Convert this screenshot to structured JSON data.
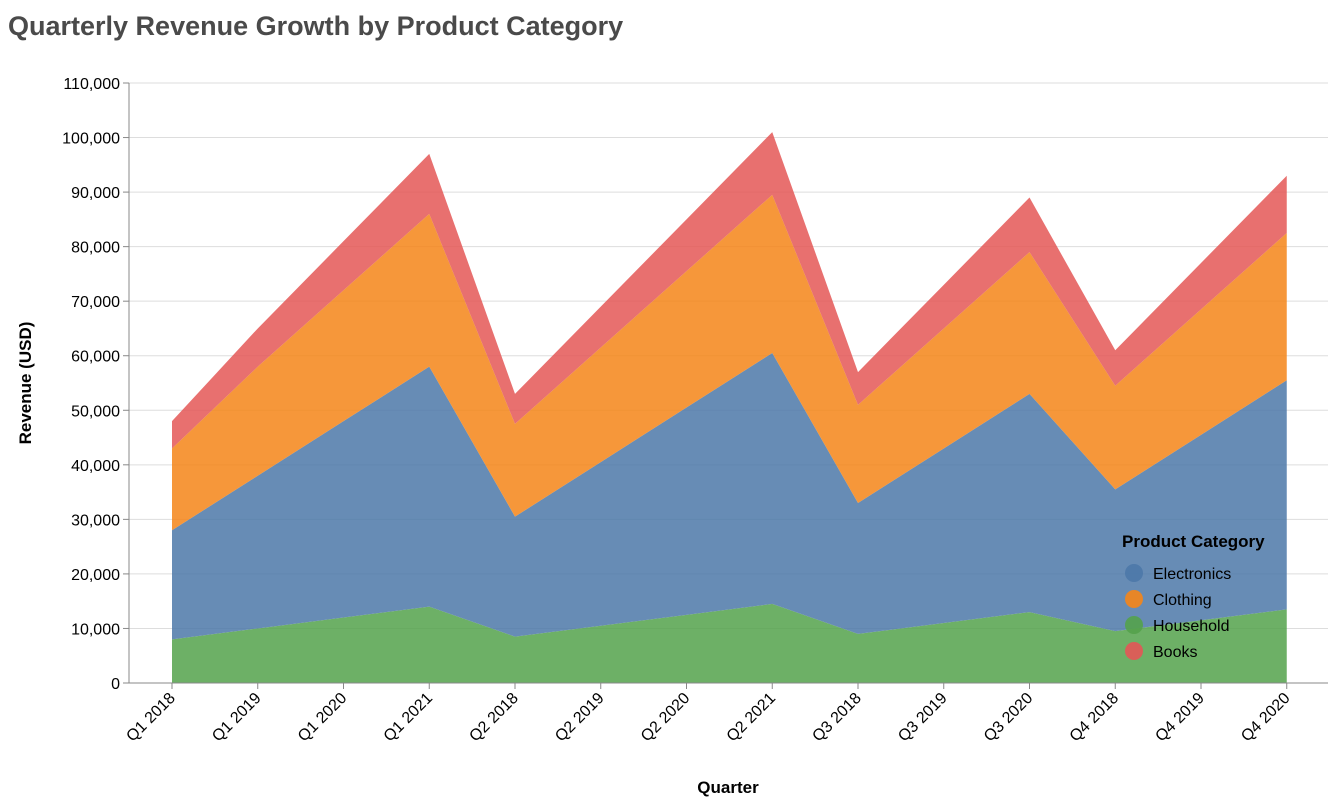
{
  "chart_data": {
    "type": "area",
    "stacked": true,
    "title": "Quarterly Revenue Growth by Product Category",
    "xlabel": "Quarter",
    "ylabel": "Revenue (USD)",
    "ylim": [
      0,
      110000
    ],
    "yticks": [
      0,
      10000,
      20000,
      30000,
      40000,
      50000,
      60000,
      70000,
      80000,
      90000,
      100000,
      110000
    ],
    "grid": true,
    "legend_title": "Product Category",
    "legend_position": "bottom-right",
    "categories": [
      "Q1 2018",
      "Q1 2019",
      "Q1 2020",
      "Q1 2021",
      "Q2 2018",
      "Q2 2019",
      "Q2 2020",
      "Q2 2021",
      "Q3 2018",
      "Q3 2019",
      "Q3 2020",
      "Q4 2018",
      "Q4 2019",
      "Q4 2020"
    ],
    "stack_order": [
      "Household",
      "Electronics",
      "Clothing",
      "Books"
    ],
    "series": [
      {
        "name": "Electronics",
        "color": "#4c78a8",
        "values": [
          20000,
          28000,
          36000,
          44000,
          22000,
          30000,
          38000,
          46000,
          24000,
          32000,
          40000,
          26000,
          34000,
          42000
        ]
      },
      {
        "name": "Clothing",
        "color": "#f58518",
        "values": [
          15000,
          20000,
          24000,
          28000,
          17000,
          21000,
          25000,
          29000,
          18000,
          22000,
          26000,
          19000,
          23000,
          27000
        ]
      },
      {
        "name": "Household",
        "color": "#54a24b",
        "values": [
          8000,
          10000,
          12000,
          14000,
          8500,
          10500,
          12500,
          14500,
          9000,
          11000,
          13000,
          9500,
          11500,
          13500
        ]
      },
      {
        "name": "Books",
        "color": "#e45756",
        "values": [
          5000,
          7000,
          9000,
          11000,
          5500,
          7500,
          9500,
          11500,
          6000,
          8000,
          10000,
          6500,
          8500,
          10500
        ]
      }
    ]
  }
}
